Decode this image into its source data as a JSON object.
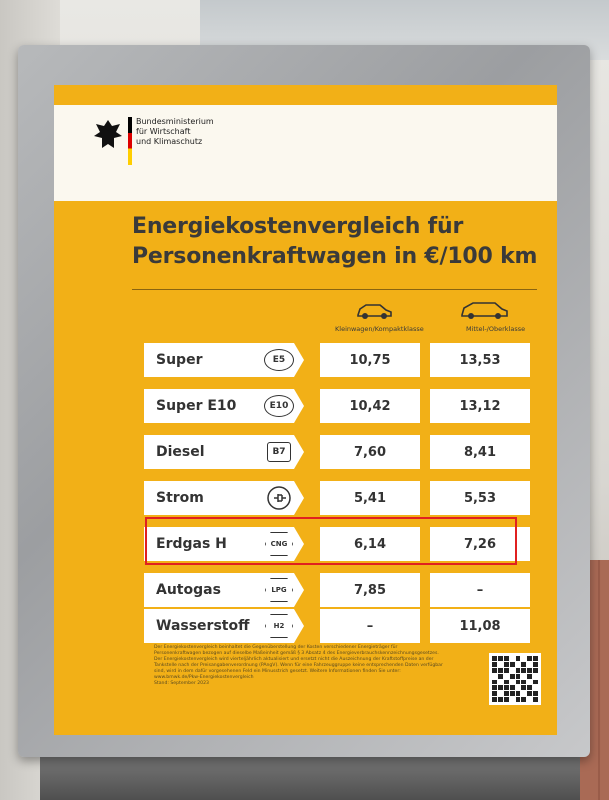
{
  "ministry": {
    "lines": [
      "Bundesministerium",
      "für Wirtschaft",
      "und Klimaschutz"
    ]
  },
  "title": {
    "line1": "Energiekostenvergleich für",
    "line2": "Personenkraftwagen in €/100 km"
  },
  "columns": {
    "small_cars": "Kleinwagen/Kompaktklasse",
    "mid_cars": "Mittel-/Oberklasse"
  },
  "rows": [
    {
      "fuel": "Super",
      "icon": "e5-label-icon",
      "icon_text": "E5",
      "small": "10,75",
      "mid": "13,53"
    },
    {
      "fuel": "Super E10",
      "icon": "e10-label-icon",
      "icon_text": "E10",
      "small": "10,42",
      "mid": "13,12"
    },
    {
      "fuel": "Diesel",
      "icon": "b7-label-icon",
      "icon_text": "B7",
      "small": "7,60",
      "mid": "8,41"
    },
    {
      "fuel": "Strom",
      "icon": "plug-icon",
      "icon_text": "",
      "small": "5,41",
      "mid": "5,53"
    },
    {
      "fuel": "Erdgas H",
      "icon": "cng-label-icon",
      "icon_text": "CNG",
      "small": "6,14",
      "mid": "7,26"
    },
    {
      "fuel": "Autogas",
      "icon": "lpg-label-icon",
      "icon_text": "LPG",
      "small": "7,85",
      "mid": "–"
    },
    {
      "fuel": "Wasserstoff",
      "icon": "h2-label-icon",
      "icon_text": "H2",
      "small": "–",
      "mid": "11,08"
    }
  ],
  "footnote": "Der Energiekostenvergleich beinhaltet die Gegenüberstellung der Kosten verschiedener Energieträger für Personenkraftwagen bezogen auf dieselbe Maßeinheit gemäß § 3 Absatz 4 des Energieverbrauchskennzeichnungsgesetzes. Der Energiekostenvergleich wird vierteljährlich aktualisiert und ersetzt nicht die Auszeichnung der Kraftstoffpreise an der Tankstelle nach der Preisangabenverordnung (PAngV). Wenn für eine Fahrzeuggruppe keine entsprechenden Daten verfügbar sind, wird in dem dafür vorgesehenen Feld ein Minusstrich gesetzt. Weitere Informationen finden Sie unter: www.bmwk.de/Pkw-Energiekostenvergleich",
  "date": "Stand: September 2023",
  "highlight_color": "#e02020",
  "poster_color": "#f2b017"
}
